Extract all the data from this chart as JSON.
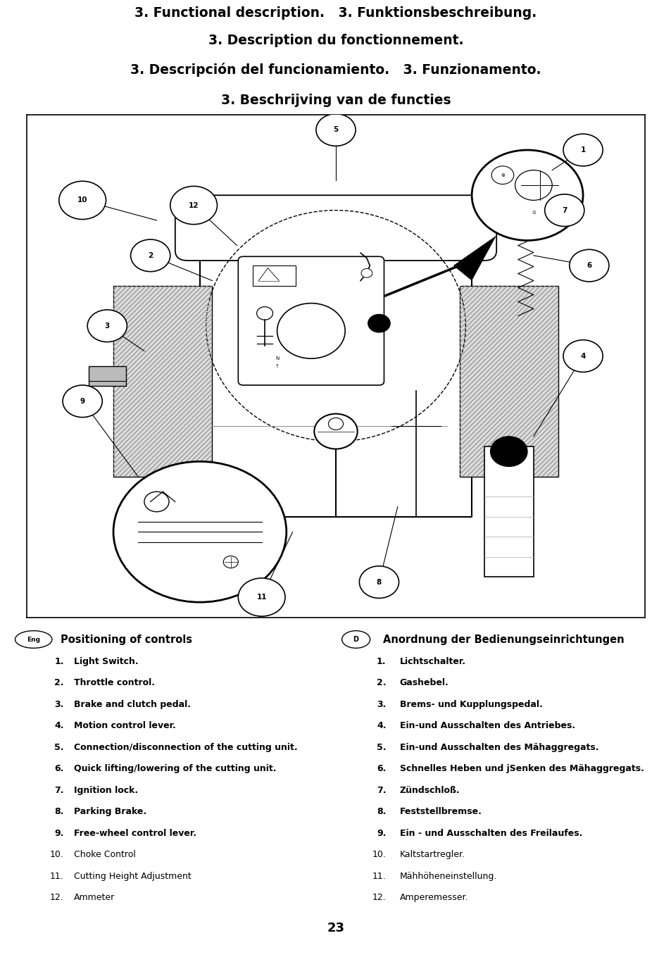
{
  "title_lines": [
    "3. Functional description.   3. Funktionsbeschreibung.",
    "3. Description du fonctionnement.",
    "3. Descripción del funcionamiento.   3. Funzionamento.",
    "3. Beschrijving van de functies"
  ],
  "eng_header": "Positioning of controls",
  "de_header": "Anordnung der Bedienungseinrichtungen",
  "eng_items": [
    "Light Switch.",
    "Throttle control.",
    "Brake and clutch pedal.",
    "Motion control lever.",
    "Connection/disconnection of the cutting unit.",
    "Quick lifting/lowering of the cutting unit.",
    "Ignition lock.",
    "Parking Brake.",
    "Free-wheel control lever.",
    "Choke Control",
    "Cutting Height Adjustment",
    "Ammeter"
  ],
  "de_items": [
    "Lichtschalter.",
    "Gashebel.",
    "Brems- und Kupplungspedal.",
    "Ein-und Ausschalten des Antriebes.",
    "Ein-und Ausschalten des Mähaggregats.",
    "Schnelles Heben und jSenken des Mähaggregats.",
    "Zündschloß.",
    "Feststellbremse.",
    "Ein - und Ausschalten des Freilaufes.",
    "Kaltstartregler.",
    "Mähhöheneinstellung.",
    "Amperemesser."
  ],
  "page_number": "23",
  "bg_color": "#ffffff",
  "text_color": "#000000"
}
